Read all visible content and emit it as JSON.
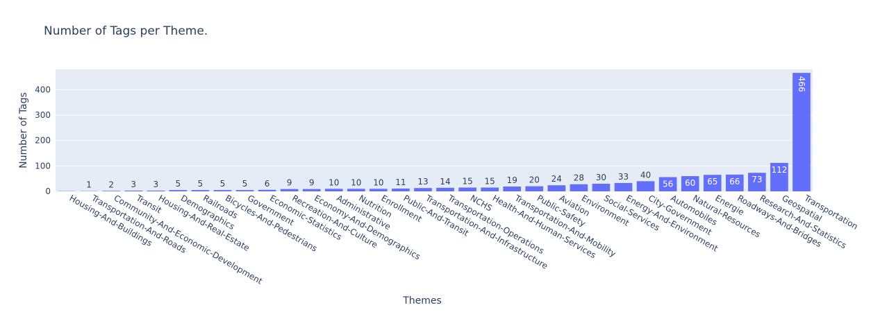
{
  "chart_data": {
    "type": "bar",
    "title": "Number of Tags per Theme.",
    "xlabel": "Themes",
    "ylabel": "Number of Tags",
    "ylim": [
      0,
      480
    ],
    "yticks": [
      0,
      100,
      200,
      300,
      400
    ],
    "grid": true,
    "legend": "none",
    "colors": {
      "bar": "#636efa",
      "plot_bg": "#e5ecf6",
      "grid": "#ffffff",
      "text": "#2a3f5f"
    },
    "categories": [
      "Housing-And-Buildings",
      "Transportation-And-Roads",
      "Community-And-Economic-Development",
      "Transit",
      "Housing-And-Real-Estate",
      "Demographics",
      "Railroads",
      "Bicycles-And-Pedestrians",
      "Government",
      "Economic-Statistics",
      "Recreation-And-Culture",
      "Economy-And-Demographics",
      "Administrative",
      "Nutrition",
      "Enrollment",
      "Public-And-Transit",
      "Transportation-And-Infrastructure",
      "Transportation-Operations",
      "NCHS",
      "Health-And-Human-Services",
      "Transportation-And-Mobility",
      "Public-Safety",
      "Aviation",
      "Environment",
      "Social-Services",
      "Energy-And-Environment",
      "City-Government",
      "Automobiles",
      "Natural-Resources",
      "Energie",
      "Roadways-And-Bridges",
      "Research-And-Statistics",
      "Geospatial",
      "Transportation"
    ],
    "values": [
      1,
      1,
      2,
      3,
      3,
      5,
      5,
      5,
      5,
      6,
      9,
      9,
      10,
      10,
      10,
      11,
      13,
      14,
      15,
      15,
      19,
      20,
      24,
      28,
      30,
      33,
      40,
      56,
      60,
      65,
      66,
      73,
      112,
      466
    ],
    "labels": [
      "",
      "1",
      "2",
      "3",
      "3",
      "5",
      "5",
      "5",
      "5",
      "6",
      "9",
      "9",
      "10",
      "10",
      "10",
      "11",
      "13",
      "14",
      "15",
      "15",
      "19",
      "20",
      "24",
      "28",
      "30",
      "33",
      "40",
      "56",
      "60",
      "65",
      "66",
      "73",
      "112",
      "466"
    ]
  }
}
